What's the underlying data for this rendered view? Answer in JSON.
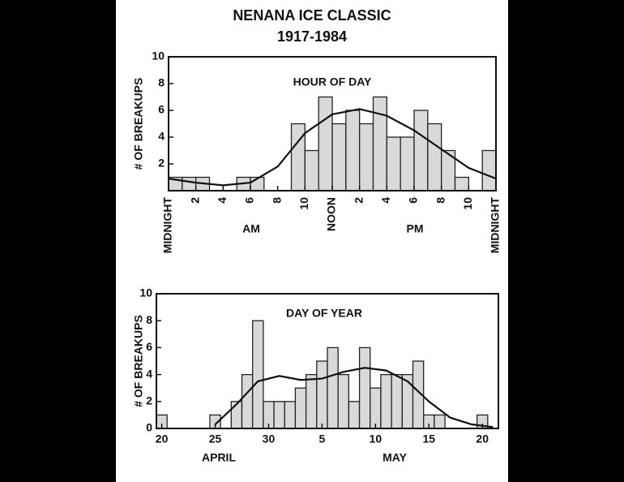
{
  "title": "NENANA ICE CLASSIC",
  "subtitle": "1917-1984",
  "chart_data": [
    {
      "type": "histogram",
      "annotation": "HOUR OF DAY",
      "ylabel": "# OF BREAKUPS",
      "period_labels": [
        "AM",
        "PM"
      ],
      "bins": [
        0,
        1,
        2,
        3,
        4,
        5,
        6,
        7,
        8,
        9,
        10,
        11,
        12,
        13,
        14,
        15,
        16,
        17,
        18,
        19,
        20,
        21,
        22,
        23,
        24
      ],
      "values": [
        1,
        1,
        1,
        0,
        0,
        1,
        1,
        0,
        0,
        5,
        3,
        7,
        5,
        6,
        5,
        7,
        4,
        4,
        6,
        5,
        3,
        1,
        0,
        3
      ],
      "fit": {
        "x": [
          0,
          2,
          4,
          6,
          8,
          10,
          12,
          14,
          16,
          18,
          20,
          22,
          24
        ],
        "values": [
          0.9,
          0.6,
          0.4,
          0.6,
          1.8,
          4.3,
          5.7,
          6.1,
          5.6,
          4.5,
          3.1,
          1.7,
          0.9
        ]
      },
      "color": "#d9d9d9",
      "xlim": [
        0,
        24
      ],
      "ylim": [
        0,
        10
      ],
      "xticks": [
        {
          "value": 0,
          "label": "MIDNIGHT"
        },
        2,
        4,
        6,
        8,
        10,
        {
          "value": 12,
          "label": "NOON"
        },
        {
          "value": 14,
          "label": "2"
        },
        {
          "value": 16,
          "label": "4"
        },
        {
          "value": 18,
          "label": "6"
        },
        {
          "value": 20,
          "label": "8"
        },
        {
          "value": 22,
          "label": "10"
        },
        {
          "value": 24,
          "label": "MIDNIGHT"
        }
      ],
      "yticks": [
        2,
        4,
        6,
        8,
        10
      ]
    },
    {
      "type": "histogram",
      "annotation": "DAY OF YEAR",
      "ylabel": "# OF BREAKUPS",
      "period_labels": [
        "APRIL",
        "MAY"
      ],
      "bins": [
        -0.5,
        0.5,
        1.5,
        2.5,
        3.5,
        4.5,
        5.5,
        6.5,
        7.5,
        8.5,
        9.5,
        10.5,
        11.5,
        12.5,
        13.5,
        14.5,
        15.5,
        16.5,
        17.5,
        18.5,
        19.5,
        20.5,
        21.5,
        22.5,
        23.5,
        24.5,
        25.5,
        26.5,
        27.5,
        28.5,
        29.5,
        30.5,
        31.5
      ],
      "values": [
        1,
        0,
        0,
        0,
        0,
        1,
        0,
        2,
        4,
        8,
        2,
        2,
        2,
        3,
        4,
        5,
        6,
        4,
        2,
        6,
        3,
        4,
        4,
        4,
        5,
        1,
        1,
        0,
        0,
        0,
        1,
        0
      ],
      "fit": {
        "x": [
          5,
          7,
          9,
          11,
          13,
          15,
          17,
          19,
          21,
          23,
          25,
          27,
          29,
          31
        ],
        "values": [
          0.3,
          1.8,
          3.5,
          3.9,
          3.6,
          3.7,
          4.2,
          4.5,
          4.3,
          3.5,
          2,
          0.8,
          0.3,
          0.1
        ]
      },
      "color": "#d9d9d9",
      "xlim": [
        -0.5,
        31.5
      ],
      "ylim": [
        0,
        10
      ],
      "xticks": [
        {
          "value": 0,
          "label": "20"
        },
        {
          "value": 5,
          "label": "25"
        },
        {
          "value": 10,
          "label": "30"
        },
        {
          "value": 15,
          "label": "5"
        },
        {
          "value": 20,
          "label": "10"
        },
        {
          "value": 25,
          "label": "15"
        },
        {
          "value": 30,
          "label": "20"
        }
      ],
      "yticks": [
        0,
        2,
        4,
        6,
        8,
        10
      ]
    }
  ]
}
